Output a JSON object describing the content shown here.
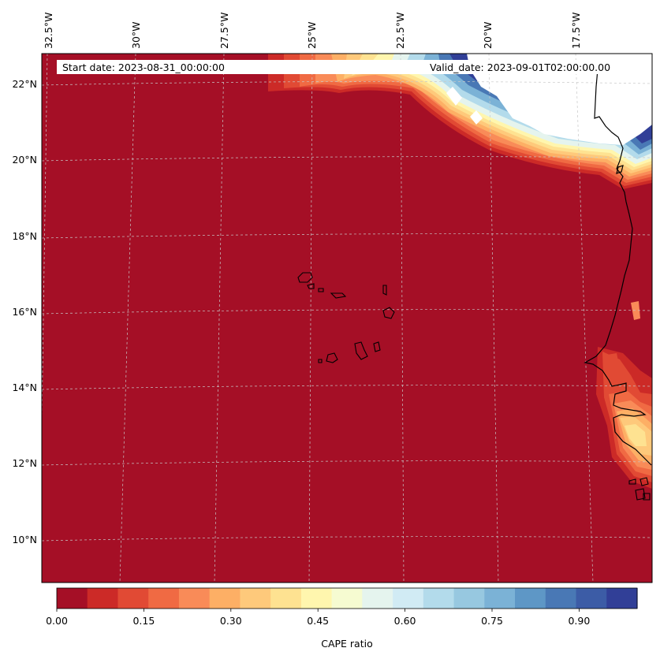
{
  "map": {
    "start_date": "Start date: 2023-08-31_00:00:00",
    "valid_date": "Valid_date: 2023-09-01T02:00:00.00",
    "lon_labels": [
      "32.5°W",
      "30°W",
      "27.5°W",
      "25°W",
      "22.5°W",
      "20°W",
      "17.5°W"
    ],
    "lat_labels": [
      "22°N",
      "20°N",
      "18°N",
      "16°N",
      "14°N",
      "12°N",
      "10°N"
    ],
    "colors": {
      "background_field": "#a50f26",
      "coast": "#000000",
      "grid": "#c8c8c8",
      "land": "#ffffff"
    }
  },
  "colorbar": {
    "label": "CAPE ratio",
    "min": 0.0,
    "max": 1.0,
    "tick_labels": [
      "0.00",
      "0.15",
      "0.30",
      "0.45",
      "0.60",
      "0.75",
      "0.90"
    ],
    "colors": [
      "#a50f26",
      "#cc2a27",
      "#e14a34",
      "#f06a43",
      "#f98b58",
      "#fdaf65",
      "#fec97b",
      "#fee291",
      "#fff6ae",
      "#f6fbd1",
      "#e5f4ee",
      "#d1ebf4",
      "#b3dbeb",
      "#97c8e0",
      "#7bb2d6",
      "#5e97c6",
      "#4978b5",
      "#3c5ca6",
      "#313f97"
    ]
  }
}
